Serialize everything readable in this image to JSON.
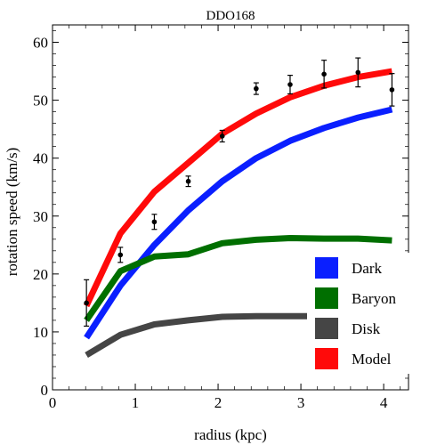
{
  "chart_data": {
    "type": "line",
    "title": "DDO168",
    "xlabel": "radius (kpc)",
    "ylabel": "rotation speed (km/s)",
    "xlim": [
      0,
      4.3
    ],
    "ylim": [
      0,
      63
    ],
    "xticks": [
      0,
      1,
      2,
      3,
      4
    ],
    "yticks": [
      0,
      10,
      20,
      30,
      40,
      50,
      60
    ],
    "grid": false,
    "legend_position": "bottom-right",
    "series": [
      {
        "name": "Dark",
        "color": "#0a1fff",
        "x": [
          0.41,
          0.82,
          1.23,
          1.64,
          2.05,
          2.46,
          2.87,
          3.28,
          3.69,
          4.1
        ],
        "y": [
          9,
          18,
          25,
          31,
          36,
          40,
          43,
          45.2,
          47,
          48.4
        ]
      },
      {
        "name": "Baryon",
        "color": "#006f00",
        "x": [
          0.41,
          0.82,
          1.23,
          1.64,
          2.05,
          2.46,
          2.87,
          3.28,
          3.69,
          4.1
        ],
        "y": [
          12,
          20.5,
          23,
          23.4,
          25.3,
          25.9,
          26.2,
          26.1,
          26.1,
          25.8
        ]
      },
      {
        "name": "Disk",
        "color": "#454545",
        "x": [
          0.41,
          0.82,
          1.23,
          1.64,
          2.05,
          2.46,
          2.87,
          3.28,
          3.69,
          4.1
        ],
        "y": [
          6,
          9.5,
          11.3,
          12,
          12.6,
          12.7,
          12.7,
          12.7,
          12.6,
          12.4
        ]
      },
      {
        "name": "Model",
        "color": "#ff0a0a",
        "x": [
          0.41,
          0.82,
          1.23,
          1.64,
          2.05,
          2.46,
          2.87,
          3.28,
          3.69,
          4.1
        ],
        "y": [
          14.5,
          27,
          34.2,
          39.2,
          44.2,
          47.7,
          50.5,
          52.5,
          54,
          55
        ]
      }
    ],
    "observed": {
      "x": [
        0.41,
        0.82,
        1.23,
        1.64,
        2.05,
        2.46,
        2.87,
        3.28,
        3.69,
        4.1
      ],
      "y": [
        15,
        23.3,
        29,
        36,
        43.8,
        52,
        52.7,
        54.5,
        54.8,
        51.8
      ],
      "err": [
        4,
        1.3,
        1.3,
        0.9,
        1,
        1,
        1.6,
        2.4,
        2.5,
        2.8
      ]
    }
  }
}
